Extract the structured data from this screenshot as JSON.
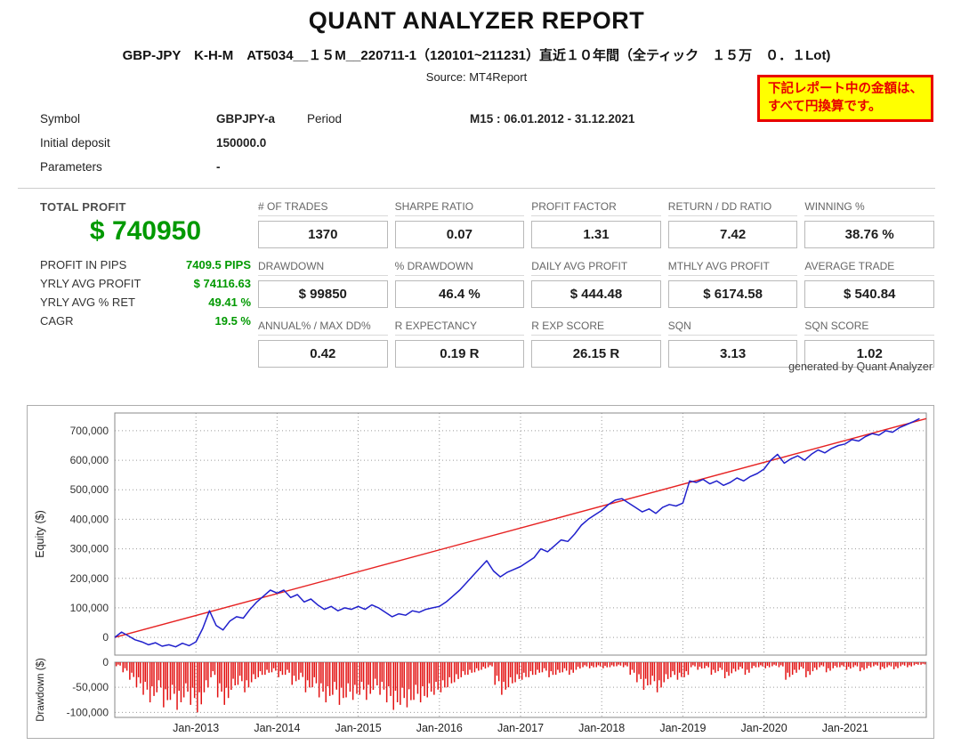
{
  "header": {
    "title": "QUANT ANALYZER REPORT",
    "subtitle": "GBP-JPY　K-H-M　AT5034__１５M__220711-1（120101~211231）直近１０年間（全ティック　１５万　０．１Lot)",
    "source": "Source: MT4Report",
    "notice_line1": "下記レポート中の金額は、",
    "notice_line2": "すべて円換算です。"
  },
  "info": {
    "symbol_label": "Symbol",
    "symbol_value": "GBPJPY-a",
    "period_label": "Period",
    "period_value": "M15 : 06.01.2012 - 31.12.2021",
    "initial_deposit_label": "Initial deposit",
    "initial_deposit_value": "150000.0",
    "parameters_label": "Parameters",
    "parameters_value": "-"
  },
  "summary": {
    "total_profit_label": "TOTAL PROFIT",
    "total_profit_value": "$ 740950",
    "accent_color": "#009900",
    "rows": [
      {
        "label": "PROFIT IN PIPS",
        "value": "7409.5 PIPS"
      },
      {
        "label": "YRLY AVG PROFIT",
        "value": "$ 74116.63"
      },
      {
        "label": "YRLY AVG % RET",
        "value": "49.41 %"
      },
      {
        "label": "CAGR",
        "value": "19.5 %"
      }
    ]
  },
  "stats": [
    {
      "label": "# OF TRADES",
      "value": "1370"
    },
    {
      "label": "SHARPE RATIO",
      "value": "0.07"
    },
    {
      "label": "PROFIT FACTOR",
      "value": "1.31"
    },
    {
      "label": "RETURN / DD RATIO",
      "value": "7.42"
    },
    {
      "label": "WINNING %",
      "value": "38.76 %"
    },
    {
      "label": "DRAWDOWN",
      "value": "$ 99850"
    },
    {
      "label": "% DRAWDOWN",
      "value": "46.4 %"
    },
    {
      "label": "DAILY AVG PROFIT",
      "value": "$ 444.48"
    },
    {
      "label": "MTHLY AVG PROFIT",
      "value": "$ 6174.58"
    },
    {
      "label": "AVERAGE TRADE",
      "value": "$ 540.84"
    },
    {
      "label": "ANNUAL% / MAX DD%",
      "value": "0.42"
    },
    {
      "label": "R EXPECTANCY",
      "value": "0.19 R"
    },
    {
      "label": "R EXP SCORE",
      "value": "26.15 R"
    },
    {
      "label": "SQN",
      "value": "3.13"
    },
    {
      "label": "SQN SCORE",
      "value": "1.02"
    }
  ],
  "footer_note": "generated by Quant Analyzer",
  "chart_data": [
    {
      "type": "line",
      "name": "equity-curve-chart",
      "title": "",
      "xlabel": "",
      "ylabel": "Equity ($)",
      "x_unit": "months since Jan-2012",
      "x_range": [
        0,
        120
      ],
      "ylim": [
        -60000,
        760000
      ],
      "y_ticks": [
        0,
        100000,
        200000,
        300000,
        400000,
        500000,
        600000,
        700000
      ],
      "x_ticks": [
        {
          "label": "Jan-2013",
          "x": 12
        },
        {
          "label": "Jan-2014",
          "x": 24
        },
        {
          "label": "Jan-2015",
          "x": 36
        },
        {
          "label": "Jan-2016",
          "x": 48
        },
        {
          "label": "Jan-2017",
          "x": 60
        },
        {
          "label": "Jan-2018",
          "x": 72
        },
        {
          "label": "Jan-2019",
          "x": 84
        },
        {
          "label": "Jan-2020",
          "x": 96
        },
        {
          "label": "Jan-2021",
          "x": 108
        }
      ],
      "grid": true,
      "legend": "none",
      "series": [
        {
          "name": "equity",
          "color": "#2020cc",
          "values": [
            0,
            18000,
            5000,
            -8000,
            -15000,
            -25000,
            -18000,
            -30000,
            -25000,
            -32000,
            -20000,
            -28000,
            -15000,
            30000,
            90000,
            40000,
            25000,
            55000,
            70000,
            65000,
            95000,
            120000,
            140000,
            160000,
            150000,
            160000,
            135000,
            145000,
            120000,
            130000,
            110000,
            95000,
            105000,
            90000,
            100000,
            95000,
            105000,
            95000,
            110000,
            100000,
            85000,
            70000,
            80000,
            75000,
            90000,
            85000,
            95000,
            100000,
            105000,
            120000,
            140000,
            160000,
            185000,
            210000,
            235000,
            260000,
            225000,
            205000,
            220000,
            230000,
            240000,
            255000,
            270000,
            300000,
            290000,
            310000,
            330000,
            325000,
            350000,
            380000,
            400000,
            415000,
            430000,
            450000,
            465000,
            470000,
            455000,
            440000,
            425000,
            435000,
            420000,
            440000,
            450000,
            445000,
            455000,
            530000,
            525000,
            535000,
            520000,
            530000,
            515000,
            525000,
            540000,
            530000,
            545000,
            555000,
            570000,
            600000,
            620000,
            590000,
            605000,
            615000,
            600000,
            620000,
            635000,
            625000,
            640000,
            650000,
            655000,
            670000,
            665000,
            680000,
            690000,
            685000,
            700000,
            695000,
            710000,
            720000,
            730000,
            740950
          ]
        },
        {
          "name": "linear-trend",
          "color": "#e62222",
          "x": [
            0,
            120
          ],
          "values": [
            0,
            740950
          ]
        }
      ]
    },
    {
      "type": "bar",
      "name": "drawdown-chart",
      "ylabel": "Drawdown ($)",
      "ylim": [
        -110000,
        0
      ],
      "y_ticks": [
        0,
        -50000,
        -100000
      ],
      "bar_color": "#e31212",
      "values": [
        -8000,
        -20000,
        -35000,
        -50000,
        -65000,
        -80000,
        -60000,
        -90000,
        -75000,
        -95000,
        -70000,
        -85000,
        -99850,
        -60000,
        -30000,
        -70000,
        -85000,
        -55000,
        -45000,
        -60000,
        -40000,
        -30000,
        -25000,
        -20000,
        -30000,
        -25000,
        -45000,
        -35000,
        -60000,
        -50000,
        -70000,
        -80000,
        -65000,
        -85000,
        -70000,
        -75000,
        -65000,
        -75000,
        -55000,
        -65000,
        -80000,
        -95000,
        -85000,
        -90000,
        -75000,
        -80000,
        -70000,
        -65000,
        -60000,
        -50000,
        -40000,
        -30000,
        -25000,
        -20000,
        -15000,
        -10000,
        -45000,
        -65000,
        -50000,
        -40000,
        -35000,
        -30000,
        -25000,
        -20000,
        -30000,
        -25000,
        -20000,
        -25000,
        -15000,
        -10000,
        -12000,
        -10000,
        -12000,
        -10000,
        -8000,
        -10000,
        -25000,
        -40000,
        -55000,
        -45000,
        -60000,
        -40000,
        -30000,
        -35000,
        -30000,
        -10000,
        -15000,
        -12000,
        -25000,
        -18000,
        -32000,
        -22000,
        -15000,
        -25000,
        -12000,
        -10000,
        -12000,
        -8000,
        -10000,
        -35000,
        -25000,
        -15000,
        -30000,
        -18000,
        -10000,
        -20000,
        -12000,
        -10000,
        -15000,
        -10000,
        -18000,
        -12000,
        -8000,
        -15000,
        -10000,
        -14000,
        -8000,
        -10000,
        -6000,
        -5000
      ]
    }
  ]
}
